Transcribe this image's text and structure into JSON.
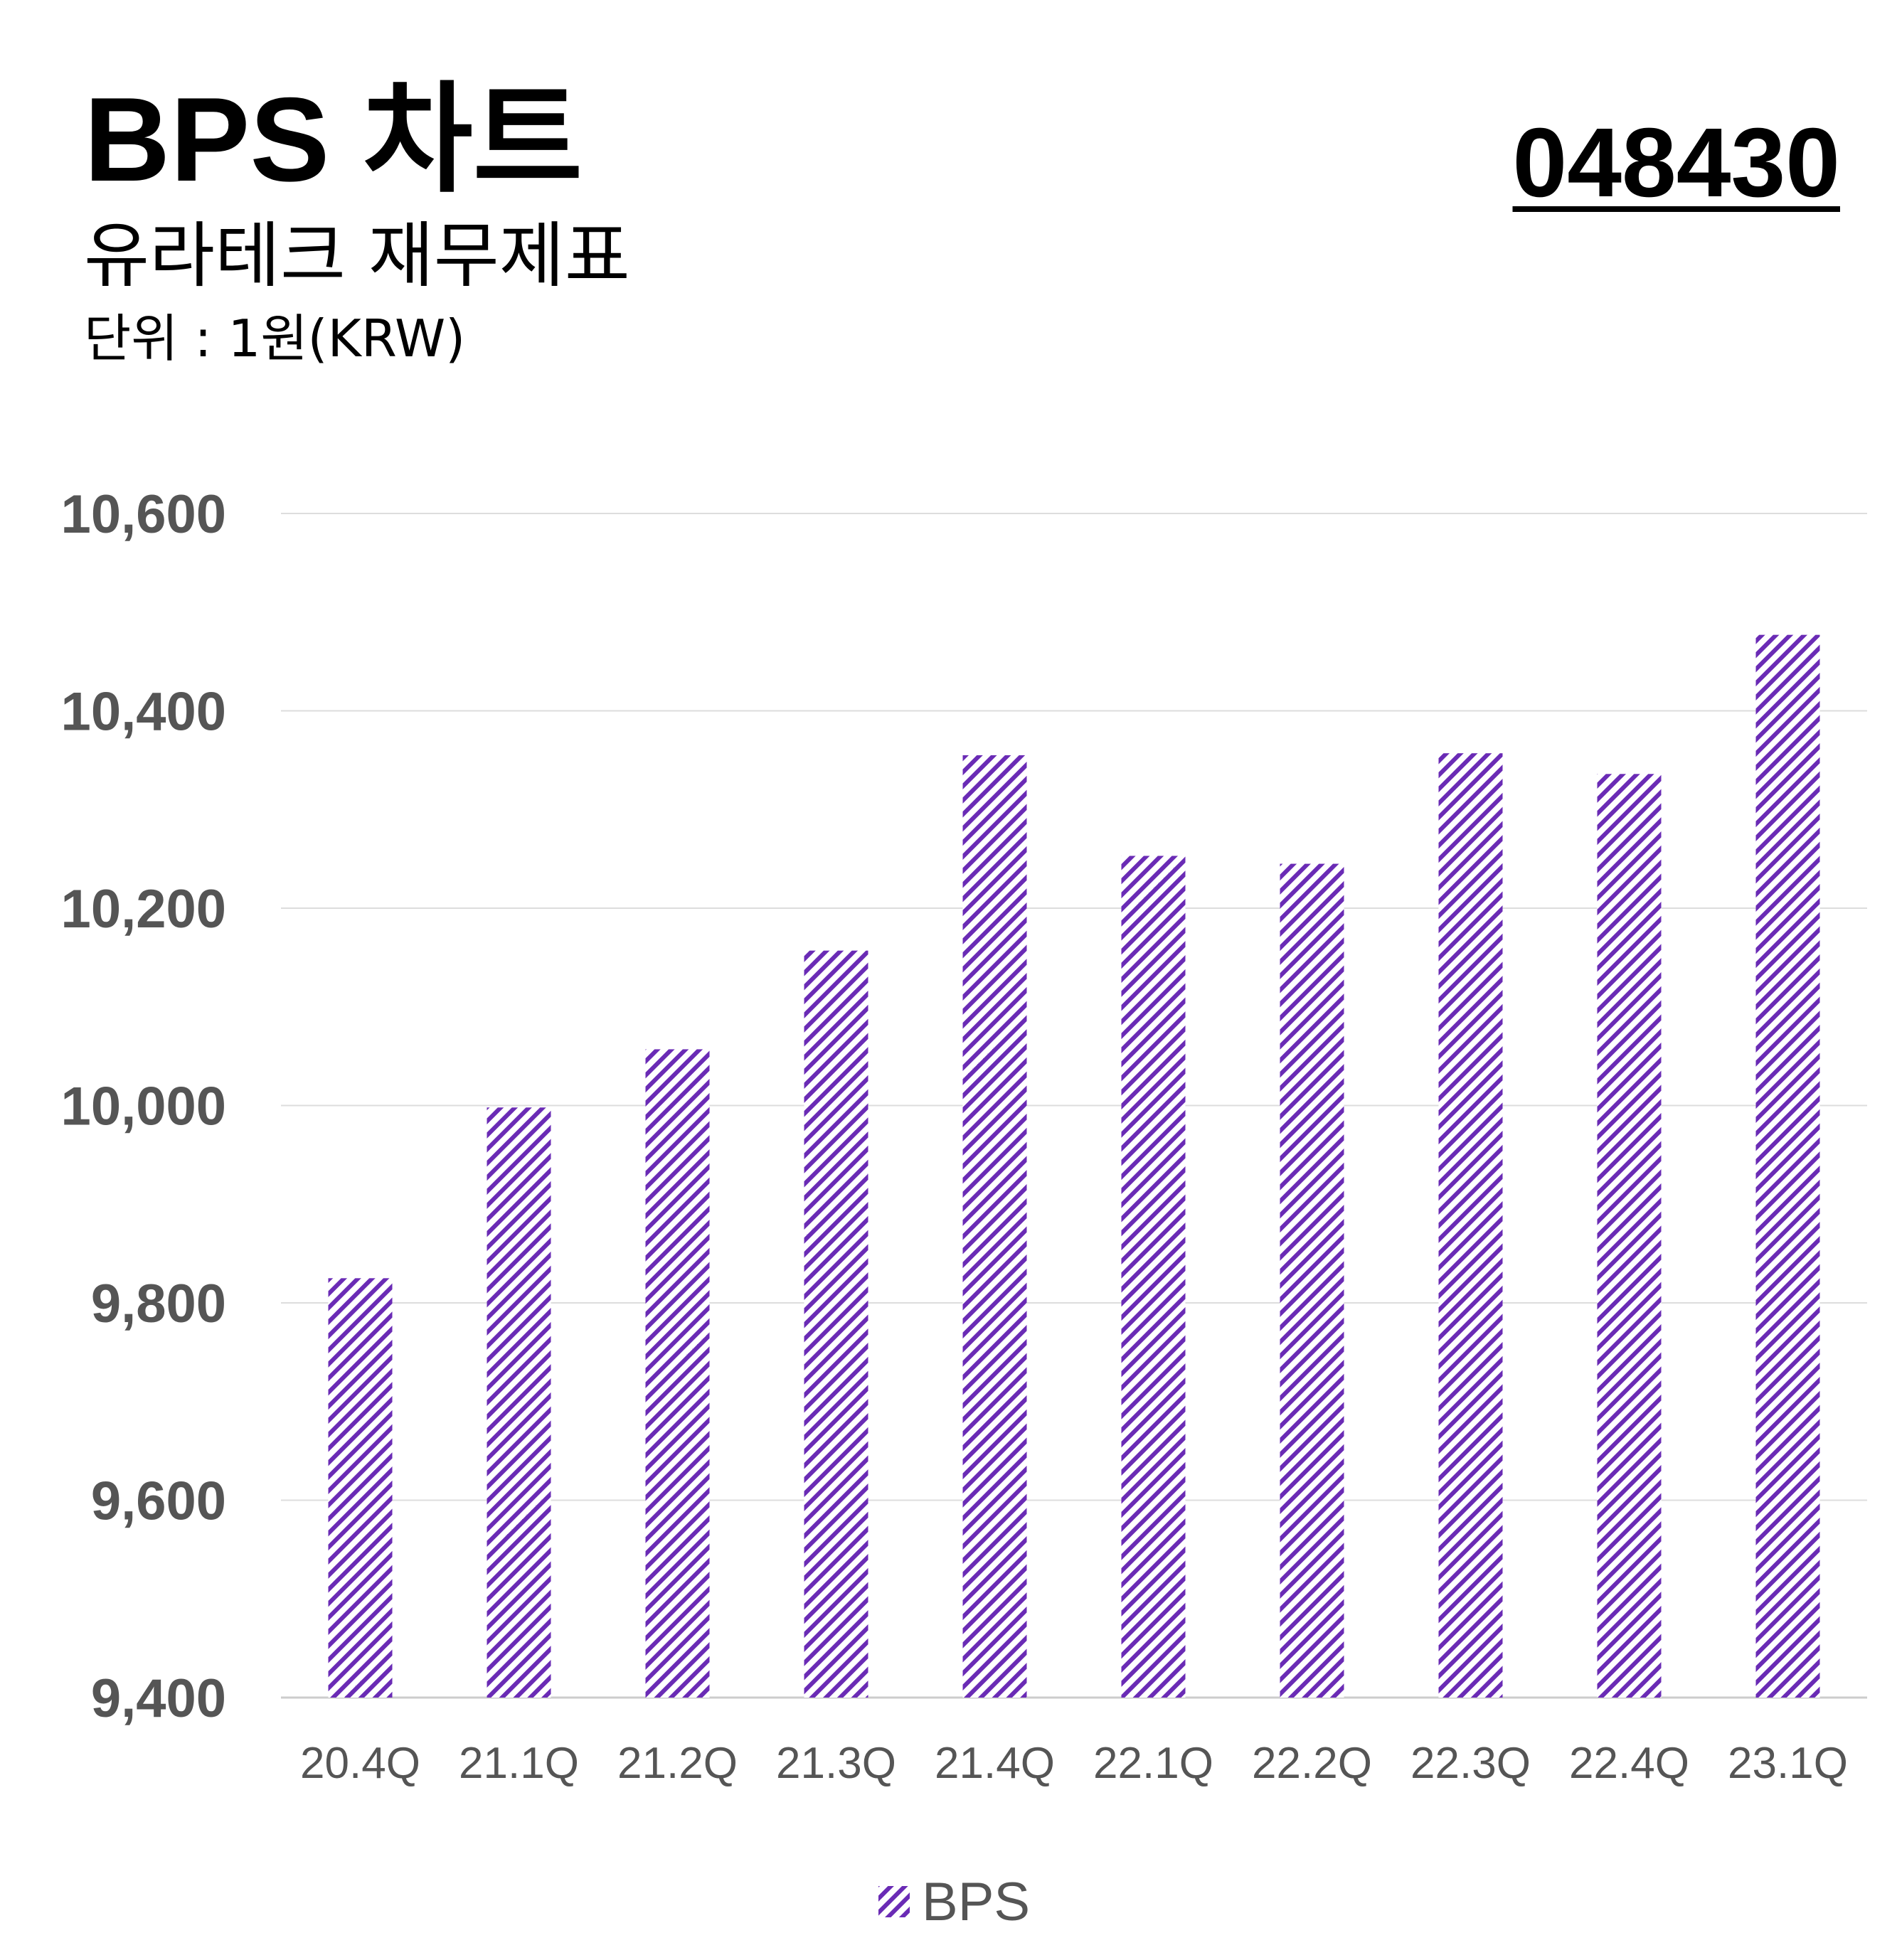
{
  "header": {
    "title": "BPS 차트",
    "subtitle": "유라테크 재무제표",
    "unit": "단위 : 1원(KRW)",
    "code": "048430"
  },
  "colors": {
    "bar": "#6a2bb5",
    "grid": "#dddddd",
    "axis": "#cccccc",
    "tick_text": "#555555"
  },
  "chart_data": {
    "type": "bar",
    "categories": [
      "20.4Q",
      "21.1Q",
      "21.2Q",
      "21.3Q",
      "21.4Q",
      "22.1Q",
      "22.2Q",
      "22.3Q",
      "22.4Q",
      "23.1Q"
    ],
    "series": [
      {
        "name": "BPS",
        "values": [
          9825,
          9998,
          10057,
          10157,
          10355,
          10253,
          10245,
          10357,
          10336,
          10477
        ]
      }
    ],
    "yticks": [
      "9,400",
      "9,600",
      "9,800",
      "10,000",
      "10,200",
      "10,400",
      "10,600"
    ],
    "ylim": [
      9400,
      10600
    ],
    "grid": true,
    "legend": "bottom-center",
    "fill": "diagonal-hatch"
  }
}
